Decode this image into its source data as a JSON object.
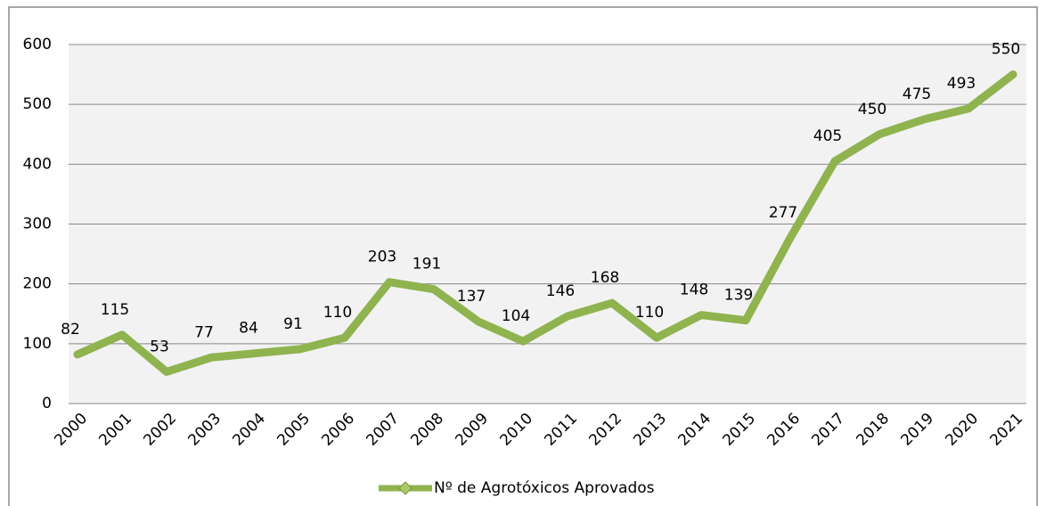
{
  "chart_data": {
    "type": "line",
    "categories": [
      "2000",
      "2001",
      "2002",
      "2003",
      "2004",
      "2005",
      "2006",
      "2007",
      "2008",
      "2009",
      "2010",
      "2011",
      "2012",
      "2013",
      "2014",
      "2015",
      "2016",
      "2017",
      "2018",
      "2019",
      "2020",
      "2021"
    ],
    "series": [
      {
        "name": "Nº de Agrotóxicos Aprovados",
        "color": "#8fb34f",
        "values": [
          82,
          115,
          53,
          77,
          84,
          91,
          110,
          203,
          191,
          137,
          104,
          146,
          168,
          110,
          148,
          139,
          277,
          405,
          450,
          475,
          493,
          550
        ]
      }
    ],
    "ylim": [
      0,
      600
    ],
    "yticks": [
      0,
      100,
      200,
      300,
      400,
      500,
      600
    ],
    "grid": true,
    "legend": "bottom"
  }
}
